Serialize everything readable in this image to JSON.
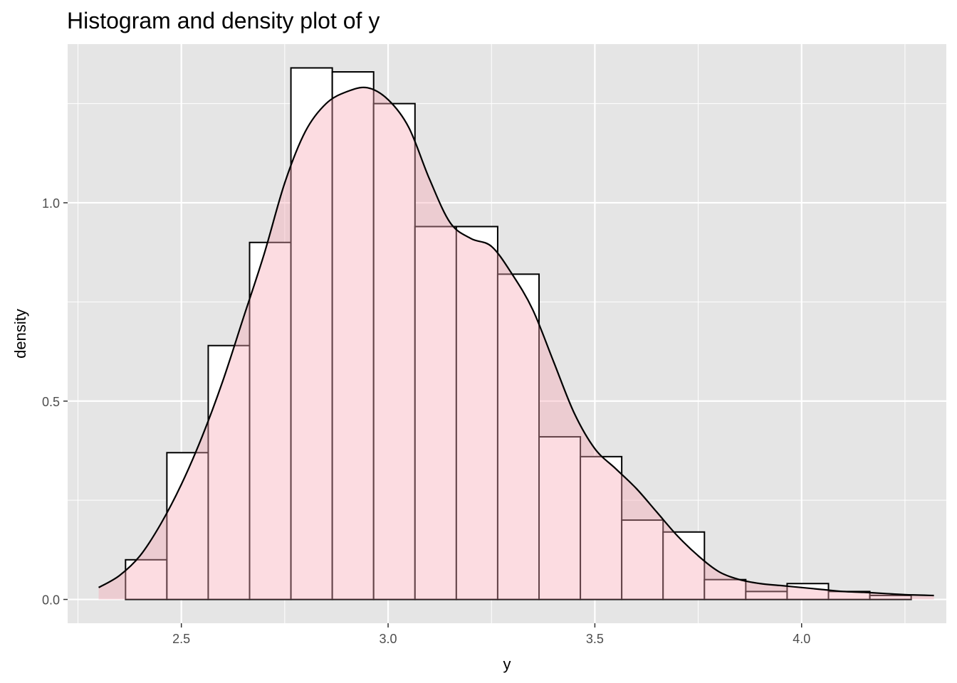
{
  "chart_data": {
    "type": "histogram+density",
    "title": "Histogram and density plot of y",
    "xlabel": "y",
    "ylabel": "density",
    "xlim": [
      2.225,
      4.35
    ],
    "ylim": [
      -0.06,
      1.4
    ],
    "x_ticks": [
      2.5,
      3.0,
      3.5,
      4.0
    ],
    "x_tick_labels": [
      "2.5",
      "3.0",
      "3.5",
      "4.0"
    ],
    "y_ticks": [
      0.0,
      0.5,
      1.0
    ],
    "y_tick_labels": [
      "0.0",
      "0.5",
      "1.0"
    ],
    "grid": true,
    "colors": {
      "panel_background": "#e5e5e5",
      "grid": "#ffffff",
      "bar_fill": "#ffffff",
      "bar_outline": "#000000",
      "density_fill": "#f8a7b3",
      "density_line": "#000000"
    },
    "histogram": {
      "bin_edges": [
        2.365,
        2.465,
        2.565,
        2.665,
        2.765,
        2.865,
        2.965,
        3.065,
        3.165,
        3.265,
        3.365,
        3.465,
        3.565,
        3.665,
        3.765,
        3.865,
        3.965,
        4.065,
        4.165,
        4.265
      ],
      "values": [
        0.1,
        0.37,
        0.64,
        0.9,
        1.34,
        1.33,
        1.25,
        0.94,
        0.94,
        0.82,
        0.41,
        0.36,
        0.2,
        0.17,
        0.05,
        0.02,
        0.04,
        0.02,
        0.01
      ]
    },
    "density": {
      "x": [
        2.3,
        2.35,
        2.4,
        2.45,
        2.5,
        2.55,
        2.6,
        2.65,
        2.7,
        2.75,
        2.8,
        2.85,
        2.9,
        2.95,
        3.0,
        3.05,
        3.1,
        3.15,
        3.2,
        3.25,
        3.3,
        3.35,
        3.4,
        3.45,
        3.5,
        3.55,
        3.6,
        3.65,
        3.7,
        3.75,
        3.8,
        3.85,
        3.9,
        3.95,
        4.0,
        4.05,
        4.1,
        4.15,
        4.2,
        4.25,
        4.32
      ],
      "y": [
        0.03,
        0.06,
        0.11,
        0.19,
        0.29,
        0.41,
        0.55,
        0.71,
        0.87,
        1.05,
        1.18,
        1.25,
        1.28,
        1.29,
        1.26,
        1.19,
        1.06,
        0.95,
        0.91,
        0.89,
        0.82,
        0.73,
        0.6,
        0.47,
        0.38,
        0.33,
        0.28,
        0.22,
        0.16,
        0.11,
        0.07,
        0.05,
        0.04,
        0.035,
        0.03,
        0.025,
        0.02,
        0.018,
        0.015,
        0.012,
        0.01
      ]
    }
  }
}
